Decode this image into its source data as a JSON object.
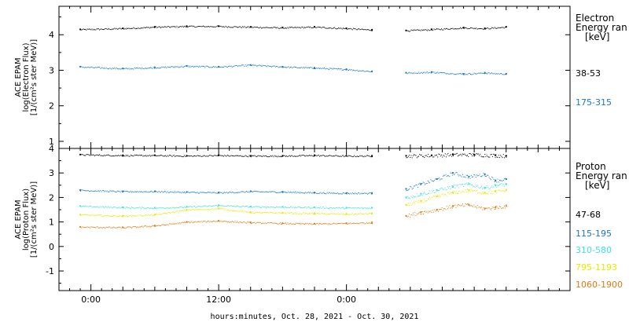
{
  "chart_data": [
    {
      "type": "scatter",
      "instrument_label": "ACE EPAM",
      "ylabel": "log(Electron Flux)",
      "yunit": "[1/(cm²s ster MeV)]",
      "ylim": [
        0.8,
        4.8
      ],
      "yticks": [
        1,
        2,
        3,
        4
      ],
      "ytick_labels": [
        "1",
        "2",
        "3",
        "4"
      ],
      "xlim": [
        -3,
        45
      ],
      "legend": {
        "line1": "Electron",
        "line2": "Energy ran",
        "unit": "[keV]",
        "placement": "right"
      },
      "gap_hours": [
        26.5,
        29.5
      ],
      "series": [
        {
          "name": "38-53",
          "color": "#000000",
          "x": [
            -1,
            3,
            6,
            9,
            12,
            15,
            18,
            21,
            24,
            26.4,
            29.6,
            32,
            35,
            37,
            39
          ],
          "y": [
            4.15,
            4.18,
            4.22,
            4.24,
            4.24,
            4.22,
            4.2,
            4.22,
            4.18,
            4.14,
            4.12,
            4.15,
            4.2,
            4.18,
            4.22
          ]
        },
        {
          "name": "175-315",
          "color": "#1a78c2",
          "x": [
            -1,
            3,
            6,
            9,
            12,
            15,
            18,
            21,
            24,
            26.4,
            29.6,
            32,
            35,
            37,
            39
          ],
          "y": [
            3.1,
            3.05,
            3.08,
            3.12,
            3.1,
            3.15,
            3.1,
            3.07,
            3.03,
            2.97,
            2.93,
            2.95,
            2.9,
            2.93,
            2.9
          ]
        }
      ]
    },
    {
      "type": "scatter",
      "instrument_label": "ACE EPAM",
      "ylabel": "log(Proton Flux)",
      "yunit": "[1/(cm²s ster MeV)]",
      "ylim": [
        -1.8,
        4.0
      ],
      "yticks": [
        -1,
        0,
        1,
        2,
        3,
        4
      ],
      "ytick_labels": [
        "-1",
        "0",
        "1",
        "2",
        "3",
        "4"
      ],
      "xlim": [
        -3,
        45
      ],
      "legend": {
        "line1": "Proton",
        "line2": "Energy ran",
        "unit": "[keV]",
        "placement": "right"
      },
      "gap_hours": [
        26.5,
        29.5
      ],
      "series": [
        {
          "name": "47-68",
          "color": "#000000",
          "x": [
            -1,
            3,
            6,
            9,
            12,
            15,
            18,
            21,
            24,
            26.4,
            29.6,
            32,
            34,
            36,
            38,
            39
          ],
          "y": [
            3.75,
            3.72,
            3.72,
            3.7,
            3.72,
            3.7,
            3.7,
            3.72,
            3.7,
            3.7,
            3.7,
            3.72,
            3.75,
            3.75,
            3.72,
            3.7
          ]
        },
        {
          "name": "115-195",
          "color": "#1a78c2",
          "x": [
            -1,
            3,
            6,
            9,
            12,
            15,
            18,
            21,
            24,
            26.4,
            29.6,
            31,
            32.5,
            34,
            35.5,
            37,
            38,
            39
          ],
          "y": [
            2.3,
            2.25,
            2.25,
            2.22,
            2.2,
            2.25,
            2.23,
            2.2,
            2.18,
            2.18,
            2.35,
            2.55,
            2.75,
            3.0,
            2.85,
            2.95,
            2.7,
            2.75
          ]
        },
        {
          "name": "310-580",
          "color": "#3fe0e0",
          "x": [
            -1,
            3,
            6,
            9,
            12,
            15,
            18,
            21,
            24,
            26.4,
            29.6,
            31,
            32.5,
            34,
            35.5,
            37,
            38,
            39
          ],
          "y": [
            1.65,
            1.6,
            1.58,
            1.62,
            1.68,
            1.63,
            1.62,
            1.6,
            1.58,
            1.58,
            2.0,
            2.15,
            2.3,
            2.45,
            2.55,
            2.4,
            2.5,
            2.55
          ]
        },
        {
          "name": "795-1193",
          "color": "#e8e800",
          "x": [
            -1,
            3,
            6,
            9,
            12,
            15,
            18,
            21,
            24,
            26.4,
            29.6,
            31,
            32.5,
            34,
            35.5,
            37,
            38,
            39
          ],
          "y": [
            1.3,
            1.25,
            1.3,
            1.5,
            1.55,
            1.4,
            1.38,
            1.35,
            1.33,
            1.35,
            1.7,
            1.85,
            2.05,
            2.2,
            2.3,
            2.2,
            2.25,
            2.3
          ]
        },
        {
          "name": "1060-1900",
          "color": "#e07b10",
          "x": [
            -1,
            3,
            6,
            9,
            12,
            15,
            18,
            21,
            24,
            26.4,
            29.6,
            31,
            32.5,
            34,
            35.5,
            37,
            38,
            39
          ],
          "y": [
            0.8,
            0.78,
            0.85,
            1.0,
            1.05,
            0.98,
            0.95,
            0.93,
            0.95,
            0.98,
            1.25,
            1.4,
            1.5,
            1.65,
            1.7,
            1.55,
            1.6,
            1.65
          ]
        }
      ]
    }
  ],
  "x_axis": {
    "title": "hours:minutes, Oct. 28, 2021 - Oct. 30, 2021",
    "major_ticks": [
      0,
      12,
      24
    ],
    "major_tick_labels": [
      "0:00",
      "12:00",
      "0:00"
    ]
  }
}
